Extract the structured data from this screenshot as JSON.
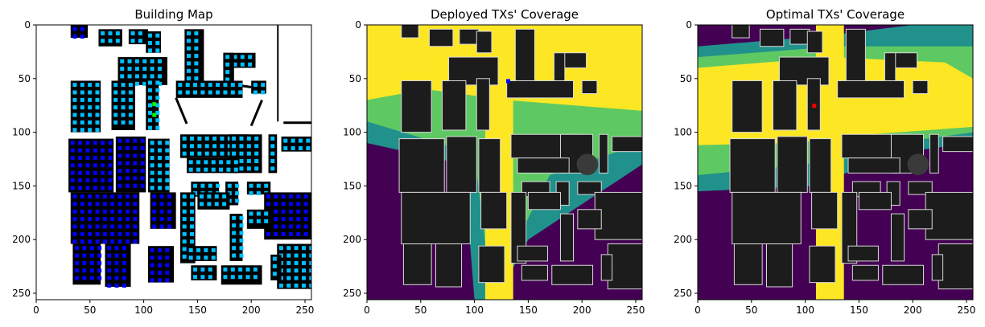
{
  "chart_data": [
    {
      "type": "heatmap",
      "title": "Building Map",
      "xlim": [
        0,
        256
      ],
      "ylim": [
        256,
        0
      ],
      "xticks": [
        0,
        50,
        100,
        150,
        200,
        250
      ],
      "yticks": [
        0,
        50,
        100,
        150,
        200,
        250
      ],
      "grid": false,
      "background_color": "#ffffff",
      "building_color": "#000000",
      "marker_colors": [
        "#00bfff",
        "#0000ff",
        "#00ff00"
      ],
      "green_markers": [
        [
          108,
          72
        ],
        [
          108,
          82
        ]
      ]
    },
    {
      "type": "heatmap",
      "title": "Deployed TXs' Coverage",
      "xlim": [
        0,
        256
      ],
      "ylim": [
        256,
        0
      ],
      "xticks": [
        0,
        50,
        100,
        150,
        200,
        250
      ],
      "yticks": [
        0,
        50,
        100,
        150,
        200,
        250
      ],
      "grid": false,
      "colormap": [
        "#440154",
        "#21918c",
        "#5ec962",
        "#fde725"
      ],
      "tx_marker": {
        "x": 131,
        "y": 52,
        "color": "#0000ff"
      }
    },
    {
      "type": "heatmap",
      "title": "Optimal TXs' Coverage",
      "xlim": [
        0,
        256
      ],
      "ylim": [
        256,
        0
      ],
      "xticks": [
        0,
        50,
        100,
        150,
        200,
        250
      ],
      "yticks": [
        0,
        50,
        100,
        150,
        200,
        250
      ],
      "grid": false,
      "colormap": [
        "#440154",
        "#21918c",
        "#5ec962",
        "#fde725"
      ],
      "tx_marker": {
        "x": 108,
        "y": 75,
        "color": "#ff0000"
      }
    }
  ]
}
